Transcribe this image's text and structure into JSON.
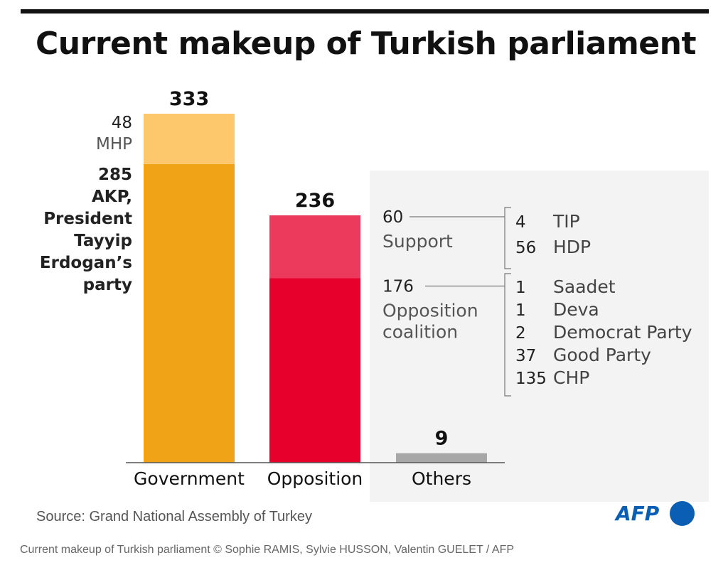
{
  "title": "Current makeup of Turkish parliament",
  "source": "Source: Grand National Assembly of Turkey",
  "logo_text": "AFP",
  "caption": "Current makeup of Turkish parliament © Sophie RAMIS, Sylvie HUSSON, Valentin GUELET / AFP",
  "colors": {
    "akp": "#f0a316",
    "mhp": "#fcc86b",
    "opposition_coalition": "#e8002d",
    "opposition_support": "#ec3a5d",
    "others": "#a7a7a7",
    "logo": "#0a5fb4"
  },
  "chart_data": {
    "type": "bar",
    "stacked": true,
    "categories": [
      "Government",
      "Opposition",
      "Others"
    ],
    "totals": [
      333,
      236,
      9
    ],
    "series": [
      {
        "name": "AKP",
        "values": [
          285,
          0,
          0
        ]
      },
      {
        "name": "MHP",
        "values": [
          48,
          0,
          0
        ]
      },
      {
        "name": "Opposition coalition",
        "values": [
          0,
          176,
          0
        ]
      },
      {
        "name": "Support",
        "values": [
          0,
          60,
          0
        ]
      },
      {
        "name": "",
        "values": [
          0,
          0,
          9
        ]
      }
    ],
    "government_labels": [
      {
        "value": "48",
        "lines": [
          "MHP"
        ]
      },
      {
        "value": "285",
        "lines": [
          "AKP,",
          "President",
          "Tayyip",
          "Erdogan’s",
          "party"
        ]
      }
    ],
    "opposition_groups": [
      {
        "value": "60",
        "lines": [
          "Support"
        ],
        "parties": [
          {
            "count": "4",
            "name": "TIP"
          },
          {
            "count": "56",
            "name": "HDP"
          }
        ]
      },
      {
        "value": "176",
        "lines": [
          "Opposition",
          "coalition"
        ],
        "parties": [
          {
            "count": "1",
            "name": "Saadet"
          },
          {
            "count": "1",
            "name": "Deva"
          },
          {
            "count": "2",
            "name": "Democrat Party"
          },
          {
            "count": "37",
            "name": "Good Party"
          },
          {
            "count": "135",
            "name": "CHP"
          }
        ]
      }
    ],
    "ylim": [
      0,
      333
    ],
    "grid": false,
    "legend": "none"
  }
}
